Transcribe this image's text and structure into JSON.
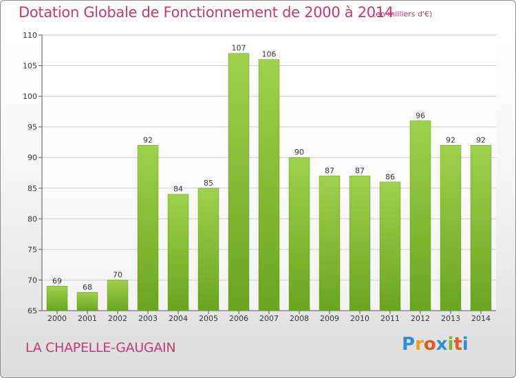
{
  "header": {
    "title": "Dotation Globale de Fonctionnement de 2000 à 2014",
    "subtitle": "(en milliers d'€)"
  },
  "footer": {
    "commune": "LA CHAPELLE-GAUGAIN",
    "logo_text": "Proxiti"
  },
  "colors": {
    "title": "#c23a6e",
    "bar_light": "#9fd14d",
    "bar_dark": "#6aa51f",
    "grid": "#cccccc",
    "axis": "#555555"
  },
  "chart_data": {
    "type": "bar",
    "title": "Dotation Globale de Fonctionnement de 2000 à 2014",
    "subtitle": "(en milliers d'€)",
    "xlabel": "",
    "ylabel": "",
    "categories": [
      "2000",
      "2001",
      "2002",
      "2003",
      "2004",
      "2005",
      "2006",
      "2007",
      "2008",
      "2009",
      "2010",
      "2011",
      "2012",
      "2013",
      "2014"
    ],
    "values": [
      69,
      68,
      70,
      92,
      84,
      85,
      107,
      106,
      90,
      87,
      87,
      86,
      96,
      92,
      92
    ],
    "ylim": [
      65,
      110
    ],
    "yticks": [
      65,
      70,
      75,
      80,
      85,
      90,
      95,
      100,
      105,
      110
    ],
    "grid": true,
    "legend": "none"
  }
}
